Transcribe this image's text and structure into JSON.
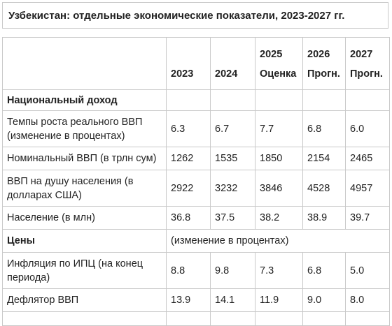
{
  "title": "Узбекистан: отдельные экономические показатели, 2023-2027 гг.",
  "header": {
    "columns": [
      {
        "line1": "",
        "line2": "2023"
      },
      {
        "line1": "",
        "line2": "2024"
      },
      {
        "line1": "2025",
        "line2": "Оценка"
      },
      {
        "line1": "2026",
        "line2": "Прогн."
      },
      {
        "line1": "2027",
        "line2": "Прогн."
      }
    ]
  },
  "sections": {
    "income": "Национальный доход",
    "prices": "Цены",
    "prices_note": "(изменение в процентах)"
  },
  "rows": [
    {
      "label": "Темпы роста реального ВВП (изменение в процентах)",
      "values": [
        "6.3",
        "6.7",
        "7.7",
        "6.8",
        "6.0"
      ]
    },
    {
      "label": "Номинальный ВВП (в трлн сум)",
      "values": [
        "1262",
        "1535",
        "1850",
        "2154",
        "2465"
      ]
    },
    {
      "label": "ВВП на душу населения (в долларах США)",
      "values": [
        "2922",
        "3232",
        "3846",
        "4528",
        "4957"
      ]
    },
    {
      "label": "Население (в млн)",
      "values": [
        "36.8",
        "37.5",
        "38.2",
        "38.9",
        "39.7"
      ]
    },
    {
      "label": "Инфляция по ИПЦ (на конец периода)",
      "values": [
        "8.8",
        "9.8",
        "7.3",
        "6.8",
        "5.0"
      ]
    },
    {
      "label": "Дефлятор ВВП",
      "values": [
        "13.9",
        "14.1",
        "11.9",
        "9.0",
        "8.0"
      ]
    }
  ]
}
